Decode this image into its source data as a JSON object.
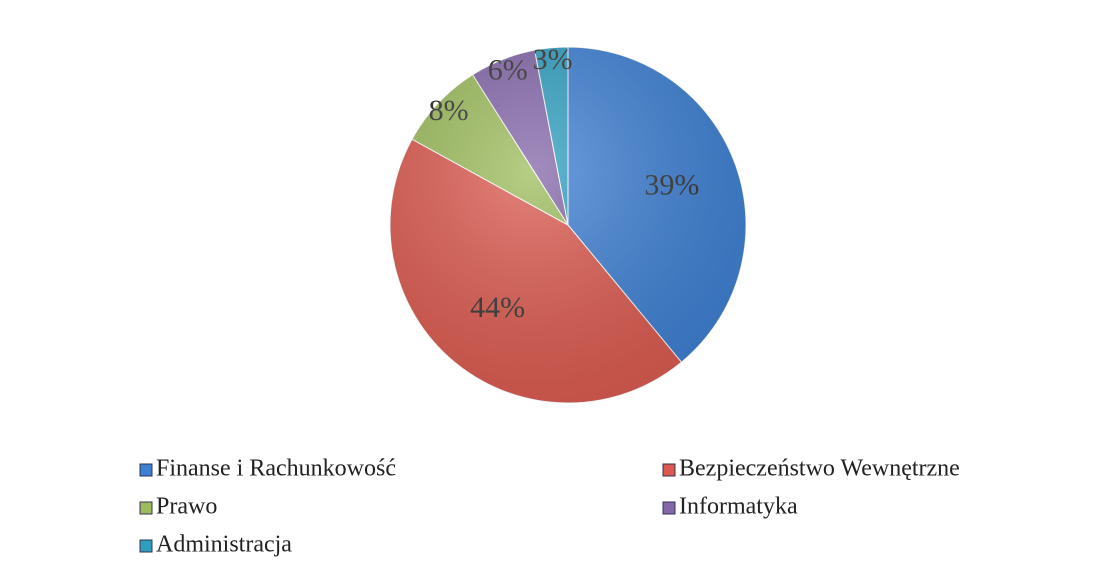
{
  "chart_data": {
    "type": "pie",
    "categories": [
      "Finanse i Rachunkowość",
      "Bezpieczeństwo Wewnętrzne",
      "Prawo",
      "Informatyka",
      "Administracja"
    ],
    "values": [
      39,
      44,
      8,
      6,
      3
    ],
    "value_labels": [
      "39%",
      "44%",
      "8%",
      "6%",
      "3%"
    ],
    "colors": [
      "#3d80d4",
      "#dd5a4f",
      "#9dbd5c",
      "#8467aa",
      "#2f9fc0"
    ],
    "legend": "bottom"
  }
}
